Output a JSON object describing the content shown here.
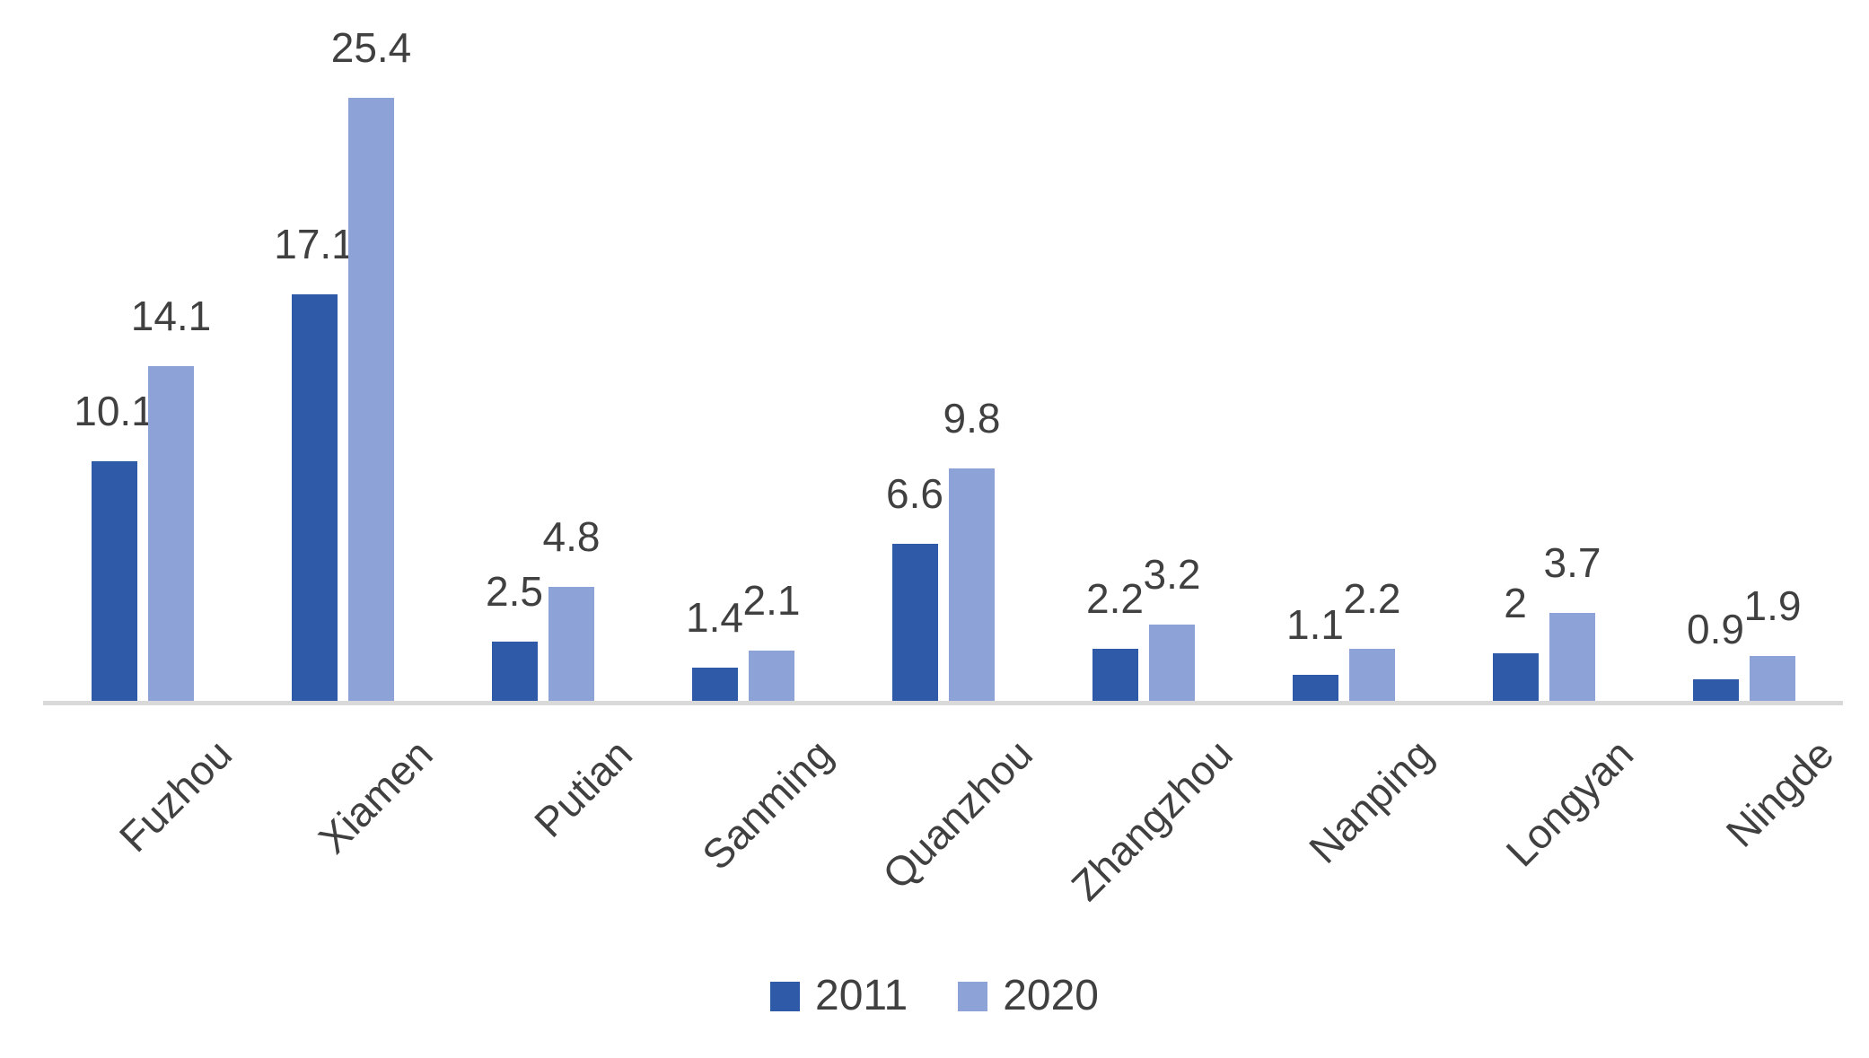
{
  "chart_data": {
    "type": "bar",
    "title": "",
    "xlabel": "",
    "ylabel": "",
    "categories": [
      "Fuzhou",
      "Xiamen",
      "Putian",
      "Sanming",
      "Quanzhou",
      "Zhangzhou",
      "Nanping",
      "Longyan",
      "Ningde"
    ],
    "series": [
      {
        "name": "2011",
        "color": "#2F5AA7",
        "values": [
          10.1,
          17.1,
          2.5,
          1.4,
          6.6,
          2.2,
          1.1,
          2,
          0.9
        ]
      },
      {
        "name": "2020",
        "color": "#8DA3D8",
        "values": [
          14.1,
          25.4,
          4.8,
          2.1,
          9.8,
          3.2,
          2.2,
          3.7,
          1.9
        ]
      }
    ],
    "data_labels": [
      "10.1",
      "17.1",
      "2.5",
      "1.4",
      "6.6",
      "2.2",
      "1.1",
      "2",
      "0.9",
      "14.1",
      "25.4",
      "4.8",
      "2.1",
      "9.8",
      "3.2",
      "2.2",
      "3.7",
      "1.9"
    ],
    "ylim": [
      0,
      29.5
    ],
    "grid": false,
    "y_axis_visible": false,
    "x_axis_line_color": "#D9D9D9",
    "label_text_color": "#404040",
    "legend_position": "bottom"
  }
}
